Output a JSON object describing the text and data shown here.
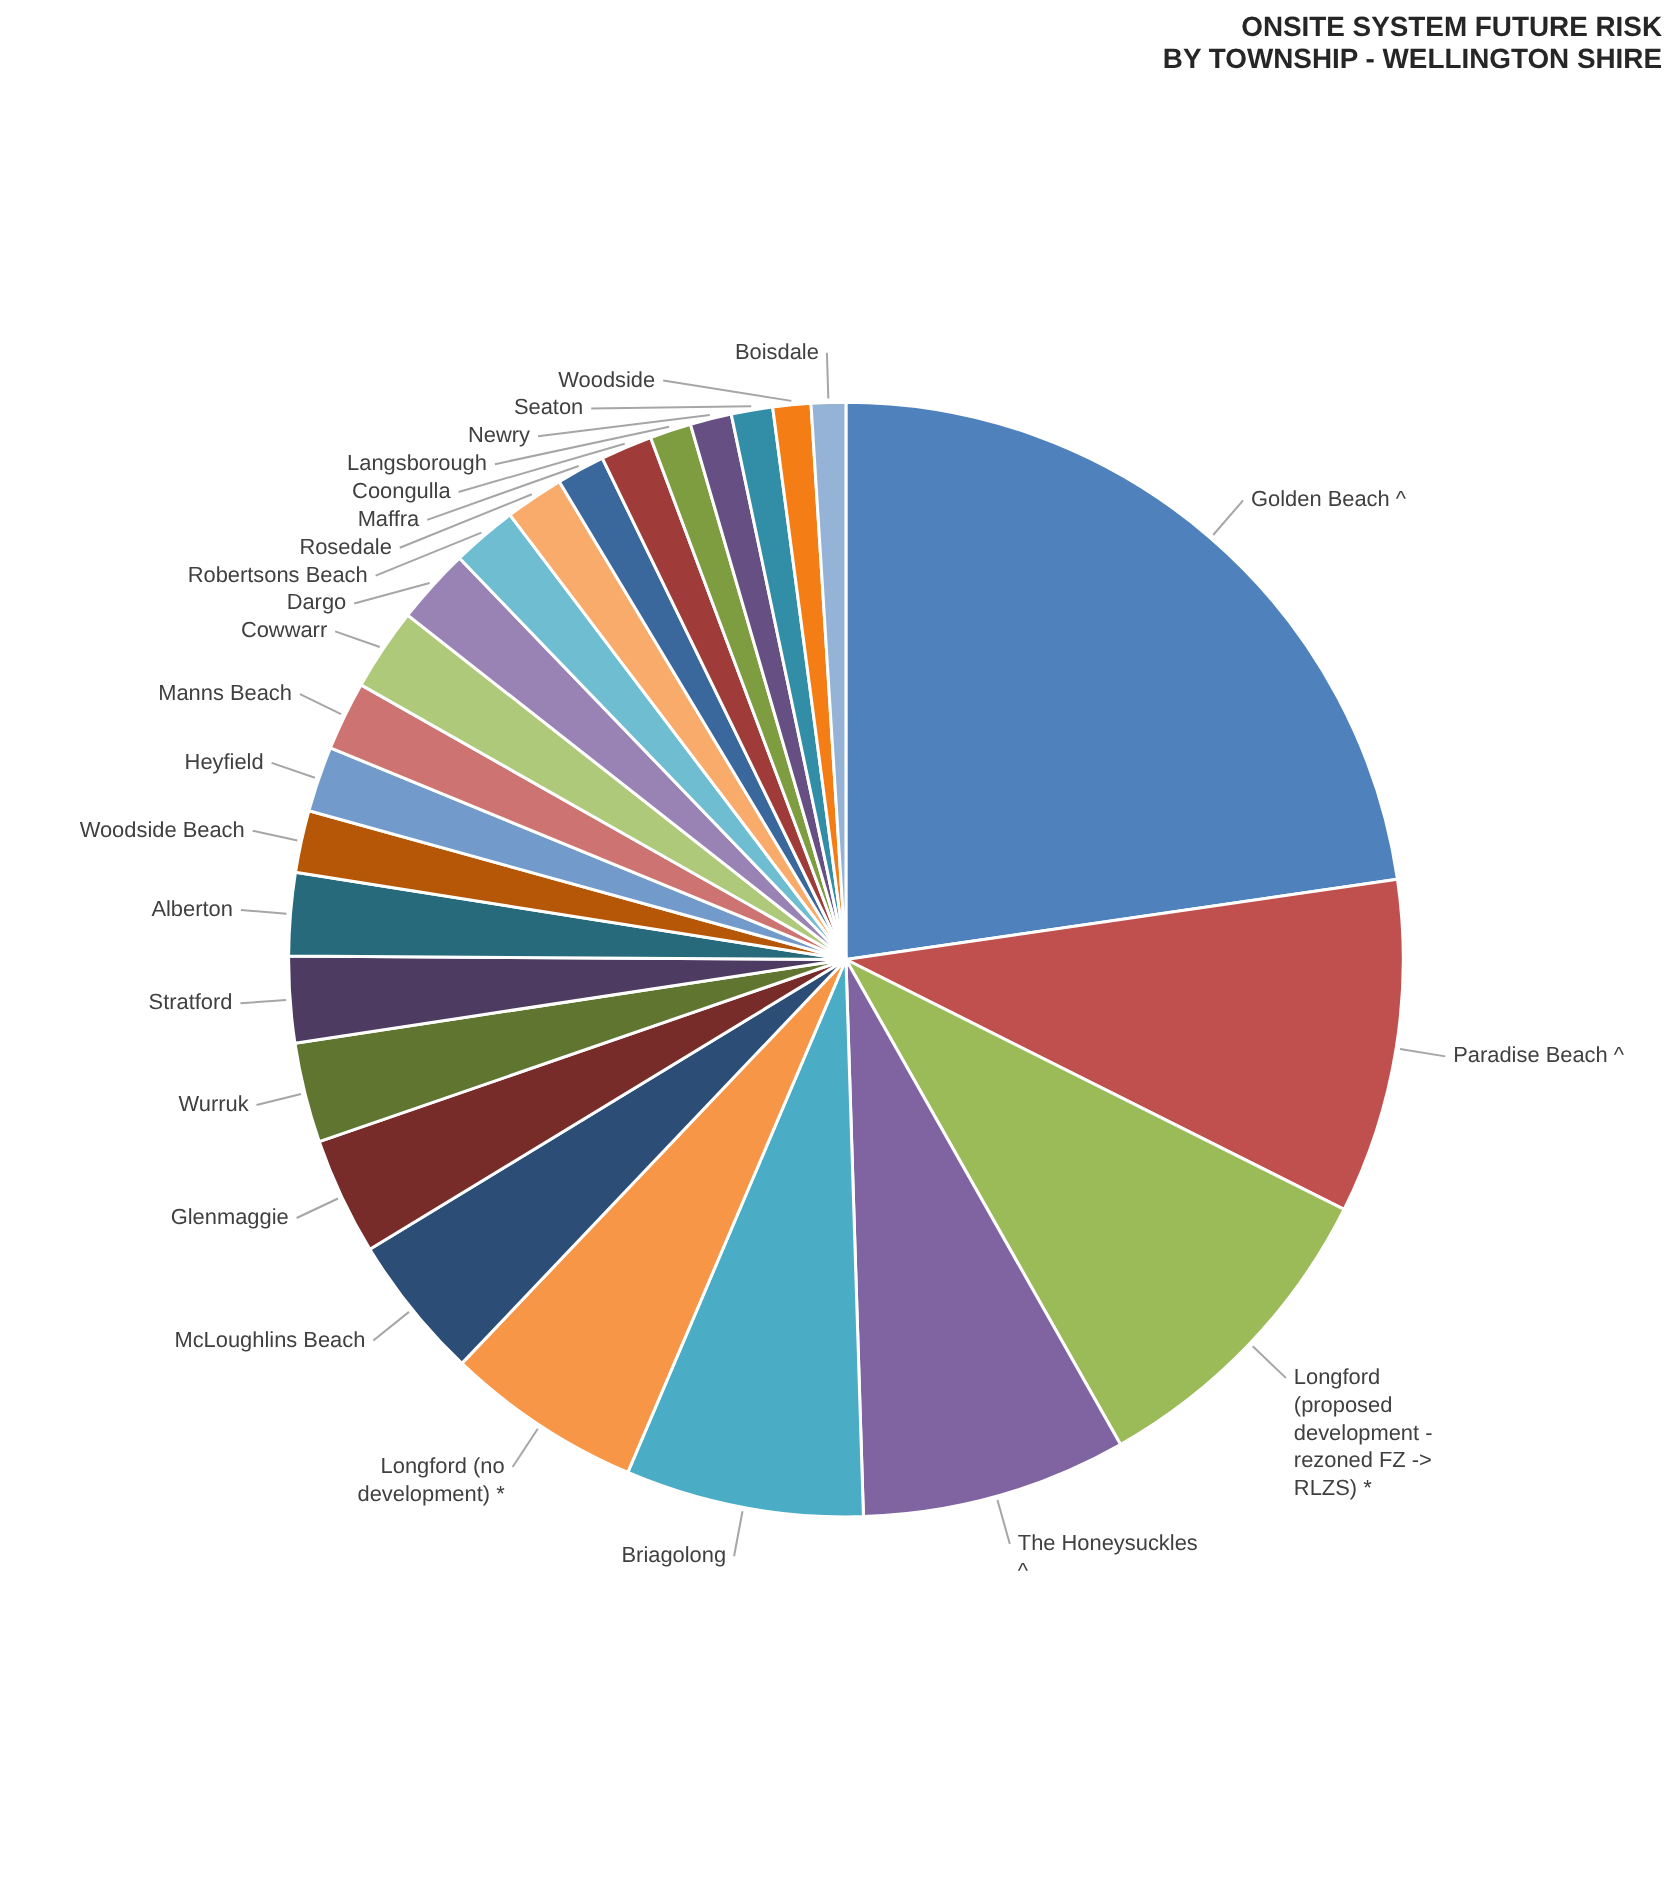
{
  "chart_data": {
    "type": "pie",
    "title": "ONSITE SYSTEM FUTURE RISK\nBY TOWNSHIP - WELLINGTON SHIRE",
    "categories": [
      "Golden Beach ^",
      "Paradise Beach ^",
      "Longford (proposed development - rezoned FZ -> RLZS) *",
      "The Honeysuckles ^",
      "Briagolong",
      "Longford (no development) *",
      "McLoughlins Beach",
      "Glenmaggie",
      "Wurruk",
      "Stratford",
      "Alberton",
      "Woodside Beach",
      "Heyfield",
      "Manns Beach",
      "Cowwarr",
      "Dargo",
      "Robertsons Beach",
      "Rosedale",
      "Maffra",
      "Coongulla",
      "Langsborough",
      "Newry",
      "Seaton",
      "Woodside",
      "Boisdale"
    ],
    "values": [
      22.7,
      9.7,
      9.4,
      7.7,
      6.9,
      5.7,
      4.2,
      3.4,
      2.9,
      2.5,
      2.4,
      1.8,
      1.9,
      2.0,
      2.4,
      2.2,
      1.9,
      1.7,
      1.4,
      1.5,
      1.2,
      1.2,
      1.2,
      1.1,
      1.0
    ],
    "colors": [
      "#4f81bd",
      "#c0504d",
      "#9bbb59",
      "#8064a2",
      "#4bacc6",
      "#f79646",
      "#2c4d75",
      "#772c2a",
      "#5f7530",
      "#4d3b62",
      "#276a7c",
      "#b65708",
      "#729aca",
      "#cd7371",
      "#afc97a",
      "#9983b5",
      "#6fbdd1",
      "#f9ab6b",
      "#3a679c",
      "#9f3b38",
      "#7e9c40",
      "#664f83",
      "#328ea6",
      "#f57d15",
      "#95b3d7"
    ],
    "legend": false
  }
}
